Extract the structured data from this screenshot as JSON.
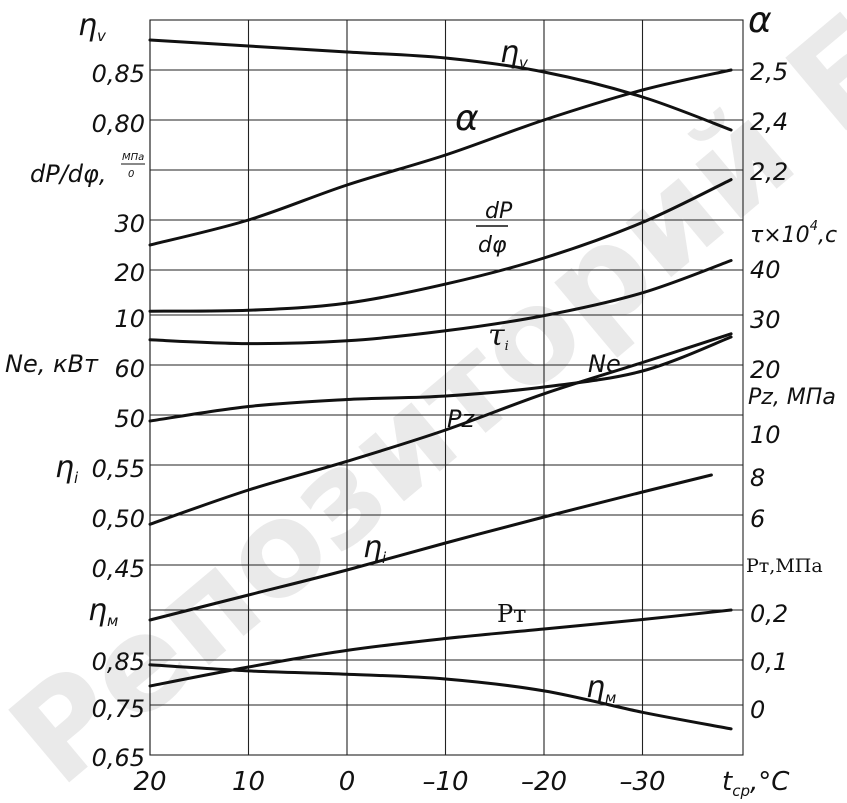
{
  "chart_data": {
    "type": "line",
    "x": {
      "label": "t_ср,°C",
      "label_main": "t",
      "label_sub": "ср",
      "label_unit": ",°C",
      "ticks": [
        "20",
        "10",
        "0",
        "–10",
        "–20",
        "–30"
      ],
      "tick_values": [
        20,
        10,
        0,
        -10,
        -20,
        -30
      ],
      "range": [
        20,
        -39
      ]
    },
    "left_axes": [
      {
        "label": "η",
        "label_sub": "v",
        "ticks": [
          "0,85",
          "0,80"
        ]
      },
      {
        "label": "dP/dφ,",
        "label_frac_num": "МПа",
        "label_frac_den": "0",
        "ticks": [
          "30",
          "20",
          "10"
        ]
      },
      {
        "label": "Ne, кВт",
        "ticks": [
          "60",
          "50"
        ]
      },
      {
        "label": "η",
        "label_sub": "i",
        "ticks": [
          "0,55",
          "0,50",
          "0,45"
        ]
      },
      {
        "label": "η",
        "label_sub": "м",
        "ticks": [
          "0,85",
          "0,75",
          "0,65"
        ]
      }
    ],
    "right_axes": [
      {
        "label": "α",
        "ticks": [
          "2,5",
          "2,4",
          "2,2"
        ]
      },
      {
        "label": "τ×10",
        "label_sup": "4",
        "label_tail": ",c",
        "ticks": [
          "40",
          "30",
          "20"
        ]
      },
      {
        "label": "Pz, МПа",
        "ticks": [
          "10",
          "8",
          "6"
        ]
      },
      {
        "label": "Pт,МПа",
        "ticks": [
          "0,2",
          "0,1",
          "0"
        ]
      }
    ],
    "series": [
      {
        "name": "η",
        "name_sub": "v",
        "axis": "ηv",
        "x": [
          20,
          10,
          0,
          -10,
          -20,
          -30,
          -39
        ],
        "y": [
          0.88,
          0.874,
          0.868,
          0.862,
          0.848,
          0.823,
          0.79
        ]
      },
      {
        "name": "α",
        "axis": "α",
        "x": [
          20,
          10,
          0,
          -10,
          -20,
          -30,
          -39
        ],
        "y": [
          2.15,
          2.2,
          2.27,
          2.33,
          2.4,
          2.46,
          2.5
        ]
      },
      {
        "name": "dP/dφ",
        "axis": "dP/dφ",
        "x": [
          20,
          10,
          0,
          -10,
          -20,
          -30,
          -39
        ],
        "y": [
          10.8,
          11,
          12.5,
          16.5,
          22,
          29.5,
          38.5
        ]
      },
      {
        "name": "τ",
        "name_sub": "i",
        "axis": "τ×10^4",
        "x": [
          20,
          10,
          0,
          -10,
          -20,
          -30,
          -39
        ],
        "y": [
          25.3,
          24.5,
          25.1,
          27.2,
          30.4,
          35.2,
          42
        ]
      },
      {
        "name": "Ne",
        "axis": "Ne",
        "x": [
          20,
          10,
          0,
          -10,
          -20,
          -30,
          -39
        ],
        "y": [
          48.8,
          51.7,
          53.1,
          53.8,
          55.6,
          58.8,
          65.6
        ]
      },
      {
        "name": "Pz",
        "axis": "Pz",
        "x": [
          20,
          10,
          0,
          -10,
          -20,
          -30,
          -39
        ],
        "y": [
          5.63,
          7.0,
          8.15,
          9.4,
          10.85,
          12.1,
          13.25
        ]
      },
      {
        "name": "η",
        "name_sub": "i",
        "axis": "ηi",
        "x": [
          20,
          10,
          0,
          -10,
          -20,
          -30,
          -37
        ],
        "y": [
          0.395,
          0.42,
          0.445,
          0.472,
          0.498,
          0.523,
          0.54
        ]
      },
      {
        "name": "Pт",
        "axis": "Pт",
        "x": [
          20,
          10,
          0,
          -10,
          -20,
          -30,
          -39
        ],
        "y": [
          0.04,
          0.08,
          0.115,
          0.14,
          0.16,
          0.18,
          0.2
        ]
      },
      {
        "name": "η",
        "name_sub": "м",
        "axis": "ηм",
        "x": [
          20,
          10,
          0,
          -10,
          -20,
          -30,
          -39
        ],
        "y": [
          0.84,
          0.827,
          0.82,
          0.81,
          0.785,
          0.74,
          0.705
        ]
      }
    ],
    "grid": true
  },
  "watermark": "Репозиторий БГАТУ"
}
